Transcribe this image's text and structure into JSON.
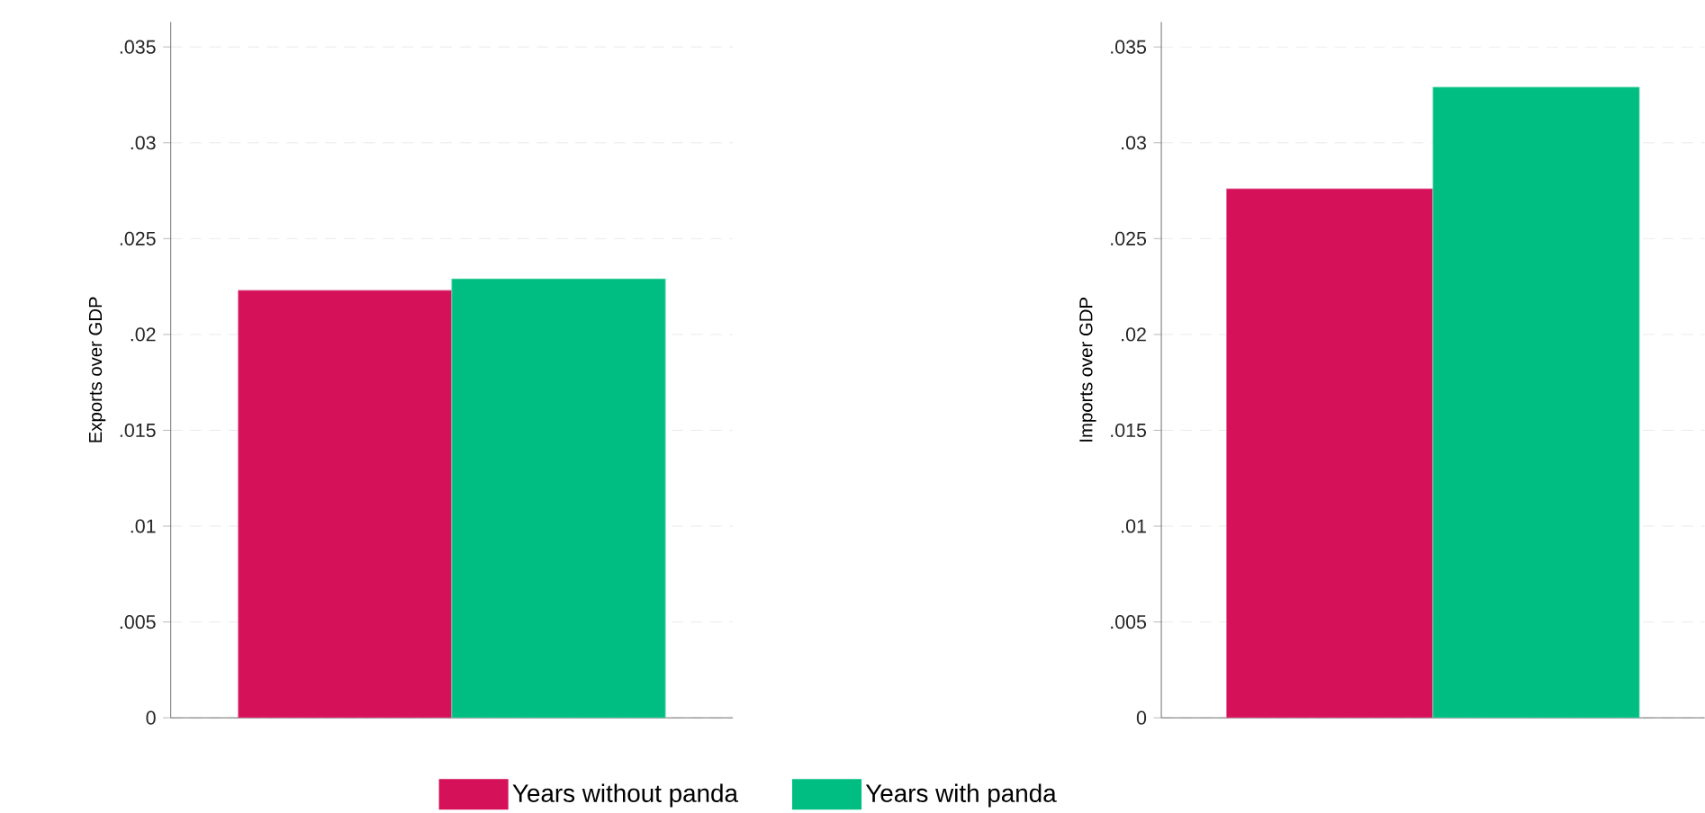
{
  "chart_data": [
    {
      "type": "bar",
      "ylabel": "Exports over GDP",
      "categories": [
        null
      ],
      "ylim": [
        0,
        0.0363
      ],
      "yticks": [
        0,
        {
          "value": 0.005,
          "label": ".005"
        },
        {
          "value": 0.01,
          "label": ".01"
        },
        {
          "value": 0.015,
          "label": ".015"
        },
        {
          "value": 0.02,
          "label": ".02"
        },
        {
          "value": 0.025,
          "label": ".025"
        },
        {
          "value": 0.03,
          "label": ".03"
        },
        {
          "value": 0.035,
          "label": ".035"
        }
      ],
      "grid": "y",
      "legend": "bottom",
      "series": [
        {
          "name": "Years without panda",
          "color": "#d41159",
          "values": [
            0.0223
          ]
        },
        {
          "name": "Years with panda",
          "color": "#00be82",
          "values": [
            0.0229
          ]
        }
      ]
    },
    {
      "type": "bar",
      "ylabel": "Imports over GDP",
      "categories": [
        null
      ],
      "ylim": [
        0,
        0.0363
      ],
      "yticks": [
        0,
        {
          "value": 0.005,
          "label": ".005"
        },
        {
          "value": 0.01,
          "label": ".01"
        },
        {
          "value": 0.015,
          "label": ".015"
        },
        {
          "value": 0.02,
          "label": ".02"
        },
        {
          "value": 0.025,
          "label": ".025"
        },
        {
          "value": 0.03,
          "label": ".03"
        },
        {
          "value": 0.035,
          "label": ".035"
        }
      ],
      "grid": "y",
      "series": [
        {
          "color": "#d41159",
          "values": [
            0.0276
          ]
        },
        {
          "color": "#00be82",
          "values": [
            0.0329
          ]
        }
      ]
    }
  ]
}
